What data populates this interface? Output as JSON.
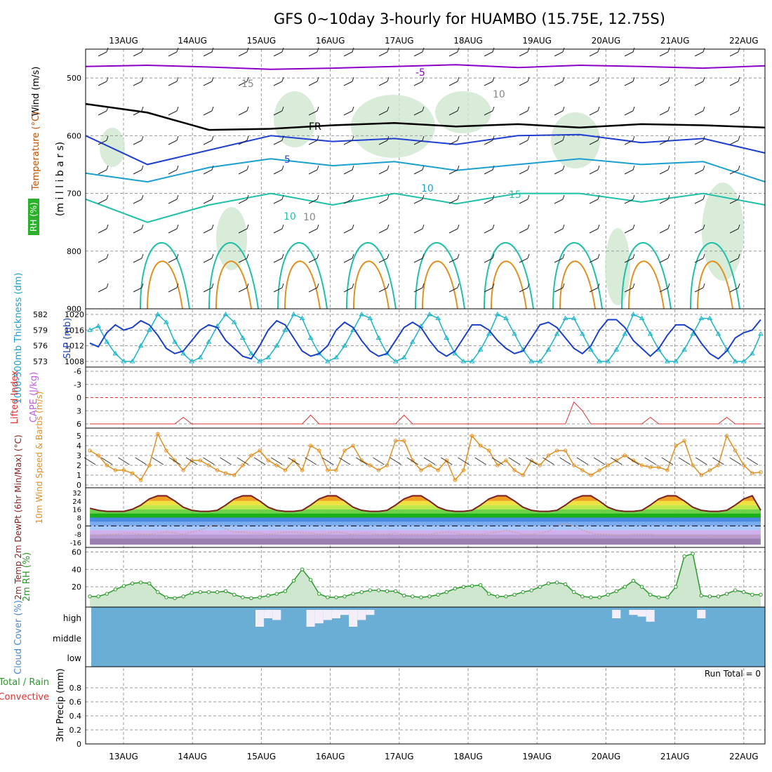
{
  "title": "GFS 0~10day 3-hourly for HUAMBO (15.75E, 12.75S)",
  "date_labels": [
    "13AUG",
    "14AUG",
    "15AUG",
    "16AUG",
    "17AUG",
    "18AUG",
    "19AUG",
    "20AUG",
    "21AUG",
    "22AUG"
  ],
  "run_total_label": "Run Total = 0",
  "colors": {
    "frame": "#000000",
    "grid": "#999999",
    "purple": "#8a00c8",
    "blue": "#1f3fd0",
    "cyan": "#1a9fd0",
    "teal": "#1ec0a8",
    "orange": "#e0901e",
    "rh_fill": "#cfe7cf",
    "slp": "#18b4c8",
    "thickness": "#1a3fc8",
    "lifted": "#e03030",
    "wind": "#e09020",
    "rh2m": "#2a9a2a",
    "cloud": "#6aaed6"
  },
  "chart_data": [
    {
      "panel": "upper_air",
      "type": "contour",
      "ylabel": "(m i l l i b a r s)",
      "legend_labels": [
        "Wind (m/s)",
        "Temperature (°C)",
        "RH (%)"
      ],
      "ylim": [
        900,
        450
      ],
      "yticks": [
        500,
        600,
        700,
        800,
        900
      ],
      "contour_labels": [
        "-5",
        "FR",
        "5",
        "10",
        "15",
        "10",
        "10",
        "15",
        "10"
      ],
      "isotherms": [
        {
          "name": "-5",
          "values": [
            480,
            478,
            481,
            485,
            483,
            480,
            477,
            482,
            478,
            480,
            483,
            479
          ]
        },
        {
          "name": "0 (FR)",
          "values": [
            545,
            560,
            590,
            588,
            582,
            578,
            584,
            580,
            586,
            580,
            582,
            586
          ]
        },
        {
          "name": "5",
          "values": [
            600,
            650,
            625,
            600,
            610,
            605,
            615,
            600,
            598,
            612,
            605,
            630
          ]
        },
        {
          "name": "10",
          "values": [
            665,
            680,
            655,
            640,
            652,
            645,
            660,
            650,
            640,
            650,
            645,
            680
          ]
        },
        {
          "name": "15",
          "values": [
            710,
            750,
            720,
            700,
            720,
            700,
            718,
            700,
            700,
            715,
            700,
            720
          ]
        }
      ]
    },
    {
      "panel": "slp_thickness",
      "type": "line",
      "ylabel_left": "1000-500mb Thickness (dm)",
      "ylabel_right": "SLP (mb)",
      "left_ticks": [
        573,
        576,
        579,
        582
      ],
      "right_ticks": [
        1008,
        1012,
        1016,
        1020
      ],
      "series": [
        {
          "name": "SLP (mb)",
          "axis": "right",
          "values": [
            1016,
            1017,
            1013,
            1010,
            1008,
            1008,
            1012,
            1016,
            1020,
            1018,
            1013,
            1010,
            1008,
            1009,
            1013,
            1017,
            1020,
            1018,
            1014,
            1010,
            1008,
            1009,
            1012,
            1016,
            1020,
            1019,
            1014,
            1010,
            1008,
            1009,
            1012,
            1016,
            1020,
            1019,
            1014,
            1010,
            1008,
            1009,
            1013,
            1017,
            1020,
            1019,
            1014,
            1010,
            1008,
            1008,
            1011,
            1015,
            1020,
            1019,
            1015,
            1011,
            1008,
            1008,
            1011,
            1015,
            1019,
            1019,
            1015,
            1011,
            1008,
            1008,
            1011,
            1015,
            1020,
            1019,
            1015,
            1011,
            1008,
            1008,
            1011,
            1015,
            1019,
            1019,
            1015,
            1011,
            1008,
            1008,
            1010,
            1015
          ]
        },
        {
          "name": "1000-500mb Thickness (dm)",
          "axis": "left",
          "values": [
            576.5,
            575.8,
            578.5,
            580.0,
            579.0,
            579.5,
            580.8,
            580.0,
            578.0,
            575.5,
            574.5,
            575.0,
            577.0,
            579.0,
            580.0,
            579.5,
            577.0,
            575.5,
            574.0,
            573.5,
            576.0,
            579.0,
            580.8,
            580.0,
            577.5,
            575.0,
            574.0,
            574.5,
            576.0,
            579.0,
            580.5,
            579.5,
            577.0,
            575.0,
            574.0,
            574.5,
            577.0,
            579.5,
            580.5,
            579.5,
            577.0,
            575.0,
            574.0,
            575.0,
            577.5,
            580.0,
            580.0,
            579.0,
            577.0,
            575.5,
            574.5,
            575.0,
            577.5,
            580.0,
            580.5,
            579.5,
            577.5,
            575.5,
            574.5,
            576.0,
            579.0,
            581.0,
            581.0,
            579.5,
            577.0,
            575.5,
            574.0,
            575.5,
            578.0,
            580.0,
            580.0,
            579.0,
            576.5,
            574.5,
            573.5,
            575.0,
            577.5,
            578.5,
            579.0,
            581.0
          ]
        }
      ]
    },
    {
      "panel": "cape_li",
      "type": "line",
      "ylabel": "Lifted Index",
      "ylabel2": "CAPE (J/kg)",
      "yticks": [
        -6,
        -3,
        0,
        3,
        6
      ],
      "series": [
        {
          "name": "Lifted Index",
          "values": [
            6,
            6,
            6,
            6,
            6,
            6,
            6,
            6,
            6,
            6,
            6,
            4.5,
            6,
            6,
            6,
            6,
            6,
            6,
            6,
            6,
            6,
            6,
            6,
            6,
            6,
            6,
            4,
            6,
            6,
            6,
            6,
            6,
            6,
            6,
            6,
            6,
            6,
            4,
            6,
            6,
            6,
            6,
            6,
            6,
            6,
            6,
            6,
            6,
            6,
            6,
            6,
            6,
            6,
            6,
            6,
            6,
            6,
            1,
            3,
            6,
            6,
            6,
            6,
            6,
            6,
            6,
            4.5,
            6,
            6,
            6,
            6,
            6,
            6,
            6,
            6,
            4.5,
            6,
            6,
            6,
            6
          ]
        }
      ]
    },
    {
      "panel": "wind10m",
      "type": "line",
      "ylabel": "10m Wind Speed & Barbs (m/s)",
      "yticks": [
        0,
        1,
        2,
        3,
        4,
        5
      ],
      "series": [
        {
          "name": "10m Wind Speed",
          "values": [
            3.5,
            3.0,
            2.0,
            1.5,
            1.5,
            1.2,
            0.5,
            2.0,
            5.2,
            3.5,
            2.5,
            1.5,
            2.5,
            2.5,
            2.0,
            1.5,
            1.2,
            1.0,
            2.0,
            3.0,
            3.5,
            2.5,
            2.0,
            1.5,
            2.5,
            1.5,
            4.0,
            3.5,
            1.5,
            1.5,
            3.5,
            4.0,
            2.5,
            2.0,
            1.5,
            2.0,
            4.5,
            4.5,
            2.5,
            1.5,
            2.0,
            1.5,
            2.5,
            0.5,
            1.5,
            5.0,
            4.0,
            3.5,
            2.0,
            2.5,
            1.5,
            1.0,
            2.5,
            2.0,
            3.0,
            3.5,
            3.5,
            2.0,
            1.5,
            1.0,
            1.5,
            2.0,
            2.5,
            3.0,
            2.5,
            2.0,
            1.8,
            1.8,
            1.5,
            4.0,
            4.5,
            2.0,
            1.0,
            1.5,
            2.0,
            5.0,
            3.5,
            2.0,
            1.2,
            1.3
          ]
        }
      ]
    },
    {
      "panel": "temp2m",
      "type": "area",
      "ylabel": "2m Temp 2m DewPt (6hr Min/Max) (°C)",
      "yticks": [
        -16,
        -8,
        0,
        8,
        16,
        24,
        32
      ],
      "series": [
        {
          "name": "2m Temp",
          "values": [
            17,
            15,
            14,
            14,
            14,
            16,
            20,
            26,
            29,
            29,
            24,
            18,
            15,
            14,
            14,
            15,
            20,
            26,
            29,
            29,
            24,
            18,
            15,
            14,
            14,
            15,
            20,
            26,
            29,
            29,
            24,
            18,
            15,
            14,
            14,
            15,
            20,
            26,
            29,
            29,
            24,
            18,
            15,
            14,
            14,
            15,
            20,
            26,
            29,
            29,
            24,
            18,
            15,
            14,
            14,
            15,
            20,
            26,
            29,
            29,
            24,
            18,
            15,
            14,
            14,
            15,
            20,
            26,
            29,
            29,
            24,
            18,
            15,
            14,
            14,
            15,
            20,
            26,
            29,
            15
          ]
        },
        {
          "name": "2m DewPt",
          "values": [
            -9,
            -9,
            -8,
            -8,
            -7,
            -7,
            -8,
            -8,
            -7,
            -6,
            -7,
            -8,
            -6,
            -4,
            -1,
            1,
            -3,
            -6,
            -6,
            -7,
            -7,
            -8,
            -7,
            -6,
            -6,
            -7,
            -7,
            -8,
            -7,
            -6,
            -7,
            -8,
            -7,
            -7,
            -8,
            -8,
            -7,
            -8,
            -8,
            -8,
            -8,
            -7,
            -6,
            -7,
            -8,
            -8,
            -8,
            -7,
            -6,
            -4,
            -6,
            -8,
            -8,
            -7,
            -5,
            0,
            2,
            0,
            -4,
            -7,
            -8,
            -8,
            -9,
            -9,
            -8,
            -8,
            -8,
            -9,
            -9,
            -9,
            -9,
            -9,
            -9,
            -10,
            -10,
            -10,
            -10,
            -10,
            -10,
            -9
          ]
        }
      ]
    },
    {
      "panel": "rh2m",
      "type": "area",
      "ylabel": "2m RH (%)",
      "yticks": [
        20,
        40,
        60
      ],
      "series": [
        {
          "name": "2m RH",
          "values": [
            9,
            9,
            12,
            17,
            21,
            24,
            25,
            24,
            14,
            8,
            7,
            9,
            13,
            14,
            14,
            14,
            15,
            11,
            8,
            7,
            8,
            10,
            12,
            15,
            27,
            40,
            28,
            12,
            8,
            8,
            9,
            12,
            14,
            16,
            16,
            15,
            15,
            10,
            9,
            8,
            9,
            11,
            14,
            18,
            20,
            21,
            22,
            12,
            9,
            9,
            11,
            14,
            16,
            20,
            24,
            25,
            23,
            14,
            9,
            8,
            8,
            11,
            15,
            20,
            27,
            20,
            11,
            8,
            8,
            20,
            55,
            58,
            10,
            9,
            9,
            12,
            16,
            14,
            11,
            11
          ]
        }
      ]
    },
    {
      "panel": "cloud_cover",
      "type": "heatmap",
      "ylabel": "Cloud Cover (%)",
      "level_labels": [
        "high",
        "middle",
        "low"
      ],
      "series": [
        {
          "name": "high",
          "values": [
            0,
            0,
            0,
            0,
            0,
            0,
            0,
            0,
            0,
            0,
            0,
            0,
            0,
            0,
            0,
            0,
            0,
            0,
            0,
            0,
            100,
            50,
            60,
            0,
            0,
            0,
            100,
            80,
            60,
            50,
            30,
            100,
            60,
            30,
            0,
            0,
            0,
            0,
            0,
            0,
            0,
            0,
            0,
            0,
            0,
            0,
            0,
            0,
            0,
            0,
            0,
            0,
            0,
            0,
            0,
            0,
            0,
            0,
            0,
            0,
            0,
            0,
            50,
            0,
            30,
            40,
            70,
            0,
            0,
            0,
            0,
            0,
            50,
            0,
            0,
            0,
            0,
            0,
            0,
            0
          ]
        }
      ]
    },
    {
      "panel": "precip",
      "type": "bar",
      "ylabel": "3hr Precip (mm)",
      "legend_labels": [
        "Total / Rain",
        "Convective"
      ],
      "yticks": [
        0,
        0.2,
        0.4,
        0.6,
        0.8
      ],
      "ylim": [
        0,
        1.0
      ],
      "series": [
        {
          "name": "Total / Rain",
          "values": [
            0,
            0,
            0,
            0,
            0,
            0,
            0,
            0,
            0,
            0
          ]
        }
      ]
    }
  ]
}
